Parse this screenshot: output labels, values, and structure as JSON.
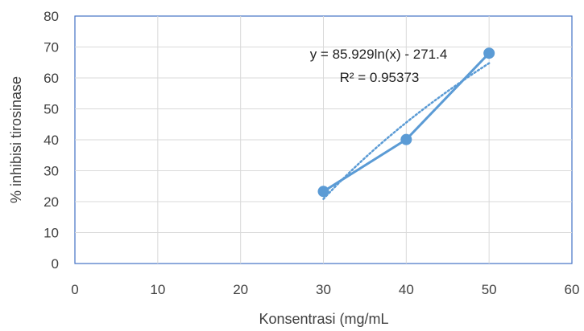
{
  "chart_data": {
    "type": "line",
    "xlabel": "Konsentrasi (mg/mL",
    "ylabel": "% inhibisi tirosinase",
    "xlim": [
      0,
      60
    ],
    "ylim": [
      0,
      80
    ],
    "xticks": [
      "0",
      "10",
      "20",
      "30",
      "40",
      "50",
      "60"
    ],
    "yticks": [
      "0",
      "10",
      "20",
      "30",
      "40",
      "50",
      "60",
      "70",
      "80"
    ],
    "grid": true,
    "legend": "none",
    "series": [
      {
        "x": [
          30,
          40,
          50
        ],
        "y": [
          23.3,
          40.1,
          68.0
        ],
        "color": "#5b9bd5",
        "style": "solid-markers"
      }
    ],
    "trendline": {
      "kind": "logarithmic",
      "a": 85.929,
      "b": -271.4,
      "x_range": [
        30,
        50
      ],
      "color": "#5b9bd5",
      "style": "dotted"
    },
    "annotations": {
      "equation": "y = 85.929ln(x) - 271.4",
      "r_squared": "R² = 0.95373"
    }
  }
}
